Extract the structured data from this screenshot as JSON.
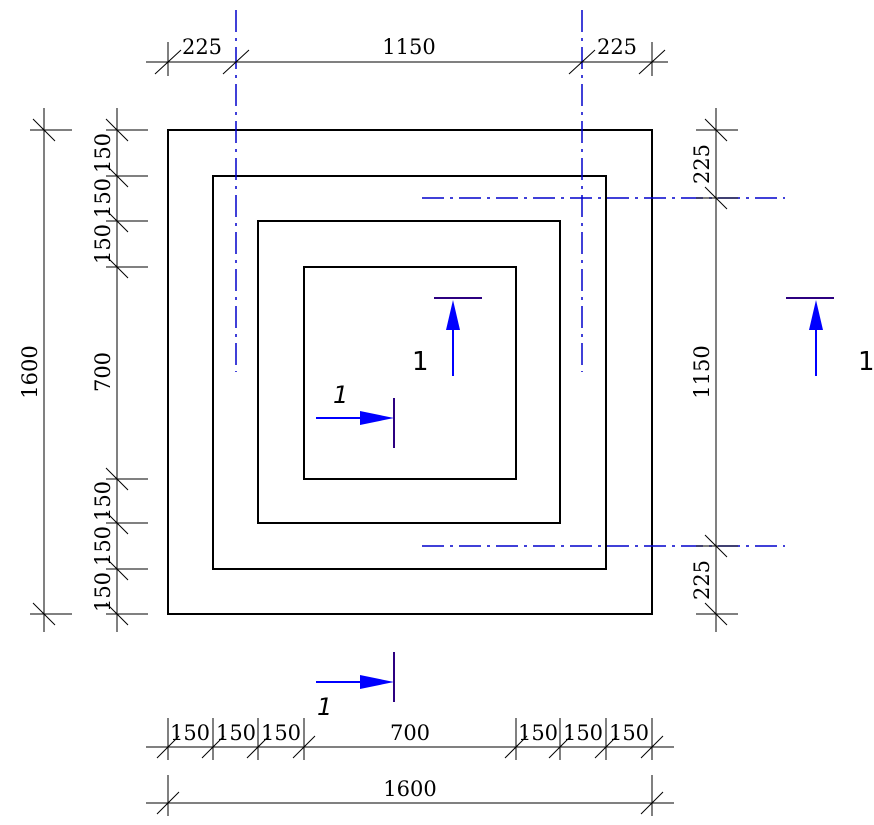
{
  "colors": {
    "outline": "#000000",
    "axis": "#0000cc",
    "section_arrow": "#0000ff",
    "section_bar": "#2c0080"
  },
  "top_dims": [
    "225",
    "1150",
    "225"
  ],
  "bottom_dims": [
    "150",
    "150",
    "150",
    "700",
    "150",
    "150",
    "150"
  ],
  "bottom_total": "1600",
  "left_dims": [
    "150",
    "150",
    "150",
    "700",
    "150",
    "150",
    "150"
  ],
  "left_total": "1600",
  "right_dims": [
    "225",
    "1150",
    "225"
  ],
  "section_marks": {
    "vertical_label": "1",
    "right_label": "1",
    "horizontal_top_label": "1",
    "horizontal_bottom_label": "1"
  }
}
